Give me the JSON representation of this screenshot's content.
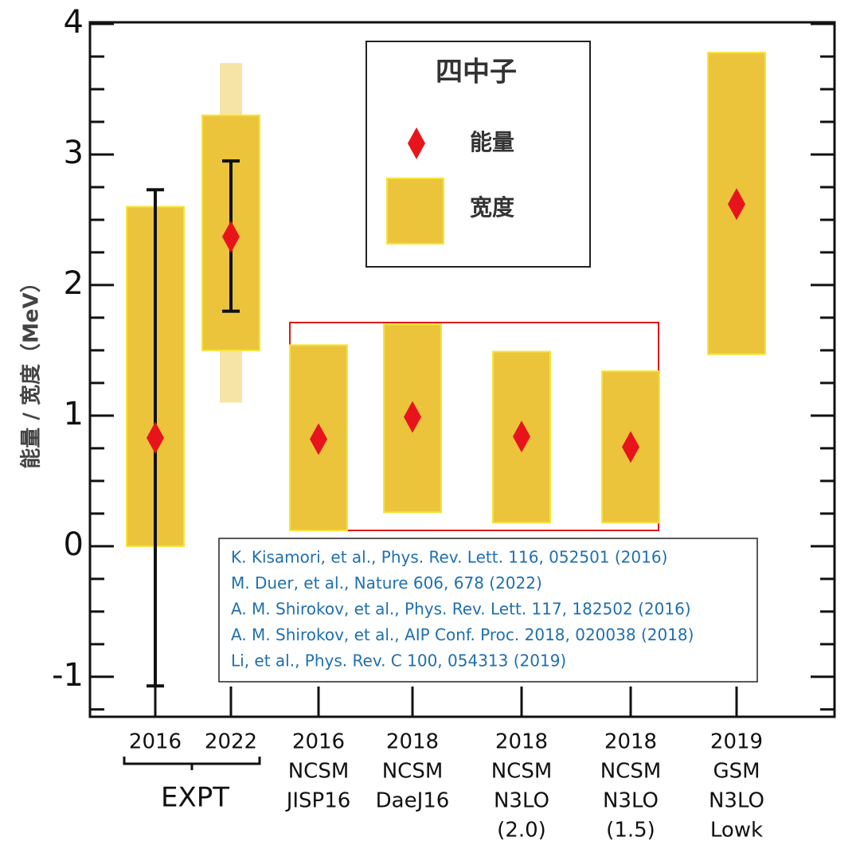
{
  "chart_data": {
    "type": "range-bar",
    "y_label": "能量 / 宽度（MeV）",
    "categories": [
      [
        "2016"
      ],
      [
        "2022"
      ],
      [
        "2016",
        "NCSM",
        "JISP16"
      ],
      [
        "2018",
        "NCSM",
        "DaeJ16"
      ],
      [
        "2018",
        "NCSM",
        "N3LO",
        "(2.0)"
      ],
      [
        "2018",
        "NCSM",
        "N3LO",
        "(1.5)"
      ],
      [
        "2019",
        "GSM",
        "N3LO",
        "Lowk"
      ]
    ],
    "group_label": "EXPT",
    "series": [
      {
        "name": "能量",
        "color": "#e8141c",
        "values": [
          0.83,
          2.37,
          0.82,
          0.99,
          0.84,
          0.76,
          2.62
        ],
        "error_low": [
          -1.07,
          1.8,
          null,
          null,
          null,
          null,
          null
        ],
        "error_high": [
          2.73,
          2.95,
          null,
          null,
          null,
          null,
          null
        ]
      },
      {
        "name": "宽度",
        "color": "#ecc43c",
        "low": [
          0,
          1.5,
          0.12,
          0.26,
          0.18,
          0.18,
          1.47
        ],
        "high": [
          2.6,
          3.3,
          1.54,
          1.7,
          1.49,
          1.34,
          3.78
        ],
        "outer_low": [
          null,
          1.1,
          null,
          null,
          null,
          null,
          null
        ],
        "outer_high": [
          null,
          3.7,
          null,
          null,
          null,
          null,
          null
        ]
      }
    ],
    "legend_title": "四中子",
    "references": [
      "K. Kisamori, et al., Phys. Rev. Lett. 116, 052501 (2016)",
      "M. Duer, et al., Nature 606,  678 (2022)",
      "A. M. Shirokov, et al., Phys. Rev. Lett. 117, 182502 (2016)",
      "A. M. Shirokov, et al., AIP Conf. Proc. 2018, 020038 (2018)",
      "Li, et al., Phys. Rev. C 100, 054313 (2019)"
    ],
    "ylim": [
      -1.3,
      4
    ],
    "yticks": [
      -1,
      0,
      1,
      2,
      3,
      4
    ],
    "yminorticks": [
      -1.25,
      -0.75,
      -0.5,
      -0.25,
      0.25,
      0.5,
      0.75,
      1.25,
      1.5,
      1.75,
      2.25,
      2.5,
      2.75,
      3.25,
      3.5,
      3.75
    ]
  }
}
